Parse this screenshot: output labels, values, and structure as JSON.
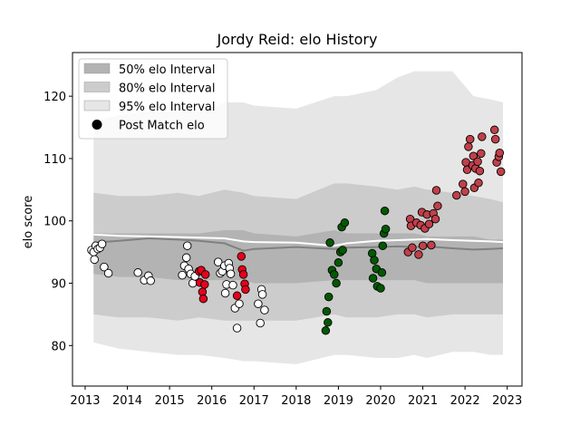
{
  "chart_data": {
    "type": "scatter",
    "title": "Jordy Reid: elo History",
    "xlabel": "",
    "ylabel": "elo score",
    "xlim": [
      2012.7,
      2023.35
    ],
    "ylim": [
      73.5,
      127
    ],
    "x_ticks": [
      "2013",
      "2014",
      "2015",
      "2016",
      "2017",
      "2018",
      "2019",
      "2020",
      "2021",
      "2022",
      "2023"
    ],
    "y_ticks": [
      "80",
      "90",
      "100",
      "110",
      "120"
    ],
    "legend": {
      "position": "top-left",
      "entries": [
        {
          "label": "50% elo Interval",
          "color": "#b3b3b3"
        },
        {
          "label": "80% elo Interval",
          "color": "#cccccc"
        },
        {
          "label": "95% elo Interval",
          "color": "#e6e6e6"
        },
        {
          "label": "Post Match elo",
          "color": "#000000"
        }
      ]
    },
    "bands": {
      "x": [
        2013.2,
        2013.8,
        2014.5,
        2015.2,
        2015.7,
        2016.3,
        2016.75,
        2017.0,
        2018.0,
        2018.9,
        2019.2,
        2019.9,
        2020.4,
        2020.8,
        2021.1,
        2021.7,
        2022.2,
        2022.6,
        2022.9
      ],
      "p95_low": [
        80.5,
        79.5,
        79.0,
        78.5,
        78.5,
        78.0,
        77.5,
        77.5,
        77.0,
        78.5,
        78.5,
        78.0,
        78.0,
        78.5,
        78.0,
        79.0,
        79.0,
        78.5,
        78.5
      ],
      "p95_high": [
        116.0,
        117.0,
        117.5,
        117.5,
        117.5,
        119.0,
        119.0,
        118.5,
        118.0,
        120.0,
        120.0,
        121.0,
        123.0,
        124.0,
        124.0,
        124.0,
        120.0,
        119.5,
        119.0
      ],
      "p80_low": [
        85.0,
        84.5,
        84.5,
        84.0,
        84.5,
        84.0,
        84.0,
        84.0,
        84.0,
        85.0,
        84.5,
        84.5,
        85.0,
        85.0,
        84.5,
        85.0,
        85.0,
        85.0,
        85.0
      ],
      "p80_high": [
        104.5,
        104.0,
        104.0,
        104.5,
        104.0,
        105.0,
        104.5,
        104.0,
        103.5,
        106.0,
        106.0,
        105.5,
        105.0,
        105.5,
        105.0,
        104.5,
        104.0,
        103.5,
        103.0
      ],
      "p50_low": [
        91.5,
        91.0,
        91.0,
        90.5,
        90.5,
        90.5,
        90.5,
        90.0,
        90.0,
        90.5,
        90.5,
        90.5,
        90.5,
        90.5,
        90.0,
        90.0,
        90.0,
        90.0,
        90.0
      ],
      "p50_high": [
        98.0,
        98.0,
        98.0,
        98.0,
        98.0,
        98.5,
        98.5,
        98.0,
        97.5,
        98.5,
        98.0,
        98.0,
        98.0,
        98.0,
        97.5,
        97.5,
        97.5,
        97.0,
        97.0
      ],
      "median": [
        96.5,
        96.8,
        97.2,
        97.0,
        96.8,
        96.4,
        95.2,
        95.5,
        95.8,
        95.5,
        95.7,
        95.8,
        95.9,
        95.8,
        95.9,
        95.6,
        95.4,
        95.5,
        95.6
      ],
      "mean": [
        97.8,
        97.6,
        97.5,
        97.4,
        97.3,
        97.2,
        96.7,
        96.6,
        96.5,
        96.0,
        96.4,
        96.8,
        96.9,
        97.0,
        97.1,
        96.9,
        96.8,
        96.7,
        96.6
      ]
    },
    "series": [
      {
        "color": "#ffffff",
        "points": [
          [
            2013.15,
            95.3
          ],
          [
            2013.2,
            95.0
          ],
          [
            2013.22,
            93.8
          ],
          [
            2013.25,
            96.0
          ],
          [
            2013.3,
            95.5
          ],
          [
            2013.35,
            95.7
          ],
          [
            2013.4,
            96.3
          ],
          [
            2013.45,
            92.6
          ],
          [
            2013.55,
            91.6
          ],
          [
            2014.25,
            91.7
          ],
          [
            2014.4,
            90.5
          ],
          [
            2014.5,
            91.2
          ],
          [
            2014.55,
            90.4
          ],
          [
            2015.3,
            91.3
          ],
          [
            2015.35,
            92.8
          ],
          [
            2015.4,
            94.1
          ],
          [
            2015.42,
            96.0
          ],
          [
            2015.45,
            92.3
          ],
          [
            2015.5,
            91.5
          ],
          [
            2015.55,
            90.0
          ],
          [
            2015.6,
            91.1
          ],
          [
            2016.15,
            93.4
          ],
          [
            2016.2,
            91.6
          ],
          [
            2016.25,
            91.9
          ],
          [
            2016.3,
            92.8
          ],
          [
            2016.32,
            88.4
          ],
          [
            2016.35,
            89.8
          ],
          [
            2016.4,
            93.2
          ],
          [
            2016.42,
            92.4
          ],
          [
            2016.45,
            91.5
          ],
          [
            2016.5,
            89.7
          ],
          [
            2016.55,
            86.0
          ],
          [
            2016.6,
            82.8
          ],
          [
            2016.65,
            86.7
          ],
          [
            2017.1,
            86.7
          ],
          [
            2017.15,
            83.6
          ],
          [
            2017.18,
            89.0
          ],
          [
            2017.2,
            88.2
          ],
          [
            2017.25,
            85.7
          ]
        ]
      },
      {
        "color": "#e8001c",
        "points": [
          [
            2015.7,
            91.9
          ],
          [
            2015.72,
            90.1
          ],
          [
            2015.75,
            92.1
          ],
          [
            2015.78,
            88.6
          ],
          [
            2015.8,
            87.5
          ],
          [
            2015.83,
            89.8
          ],
          [
            2015.85,
            91.4
          ],
          [
            2016.6,
            88.0
          ],
          [
            2016.7,
            94.3
          ],
          [
            2016.72,
            92.2
          ],
          [
            2016.75,
            91.4
          ],
          [
            2016.78,
            89.9
          ],
          [
            2016.8,
            89.0
          ]
        ]
      },
      {
        "color": "#005a00",
        "points": [
          [
            2018.7,
            82.4
          ],
          [
            2018.72,
            85.5
          ],
          [
            2018.75,
            83.7
          ],
          [
            2018.77,
            87.8
          ],
          [
            2018.8,
            96.5
          ],
          [
            2018.85,
            92.1
          ],
          [
            2018.9,
            91.4
          ],
          [
            2018.95,
            90.0
          ],
          [
            2019.0,
            93.3
          ],
          [
            2019.05,
            95.0
          ],
          [
            2019.08,
            99.0
          ],
          [
            2019.1,
            95.3
          ],
          [
            2019.15,
            99.7
          ],
          [
            2019.8,
            94.8
          ],
          [
            2019.82,
            90.8
          ],
          [
            2019.85,
            93.7
          ],
          [
            2019.9,
            92.3
          ],
          [
            2019.92,
            89.5
          ],
          [
            2020.0,
            89.2
          ],
          [
            2020.03,
            91.7
          ],
          [
            2020.05,
            96.0
          ],
          [
            2020.08,
            98.0
          ],
          [
            2020.1,
            101.6
          ],
          [
            2020.12,
            98.7
          ]
        ]
      },
      {
        "color": "#c0404a",
        "points": [
          [
            2020.65,
            95.0
          ],
          [
            2020.7,
            100.3
          ],
          [
            2020.72,
            99.2
          ],
          [
            2020.75,
            95.7
          ],
          [
            2020.85,
            99.7
          ],
          [
            2020.9,
            94.6
          ],
          [
            2020.95,
            99.3
          ],
          [
            2020.98,
            101.4
          ],
          [
            2021.0,
            96.0
          ],
          [
            2021.05,
            98.8
          ],
          [
            2021.1,
            101.0
          ],
          [
            2021.15,
            99.5
          ],
          [
            2021.2,
            96.1
          ],
          [
            2021.25,
            101.2
          ],
          [
            2021.3,
            100.3
          ],
          [
            2021.32,
            104.9
          ],
          [
            2021.35,
            102.4
          ],
          [
            2021.8,
            104.1
          ],
          [
            2021.95,
            105.9
          ],
          [
            2022.0,
            104.7
          ],
          [
            2022.02,
            109.4
          ],
          [
            2022.05,
            108.2
          ],
          [
            2022.08,
            111.9
          ],
          [
            2022.12,
            113.1
          ],
          [
            2022.18,
            108.9
          ],
          [
            2022.2,
            110.4
          ],
          [
            2022.22,
            105.3
          ],
          [
            2022.25,
            108.4
          ],
          [
            2022.3,
            109.5
          ],
          [
            2022.32,
            106.1
          ],
          [
            2022.35,
            108.0
          ],
          [
            2022.38,
            110.8
          ],
          [
            2022.4,
            113.5
          ],
          [
            2022.7,
            114.6
          ],
          [
            2022.72,
            113.1
          ],
          [
            2022.75,
            109.4
          ],
          [
            2022.8,
            110.3
          ],
          [
            2022.82,
            110.9
          ],
          [
            2022.85,
            107.9
          ]
        ]
      }
    ],
    "grid": false
  }
}
